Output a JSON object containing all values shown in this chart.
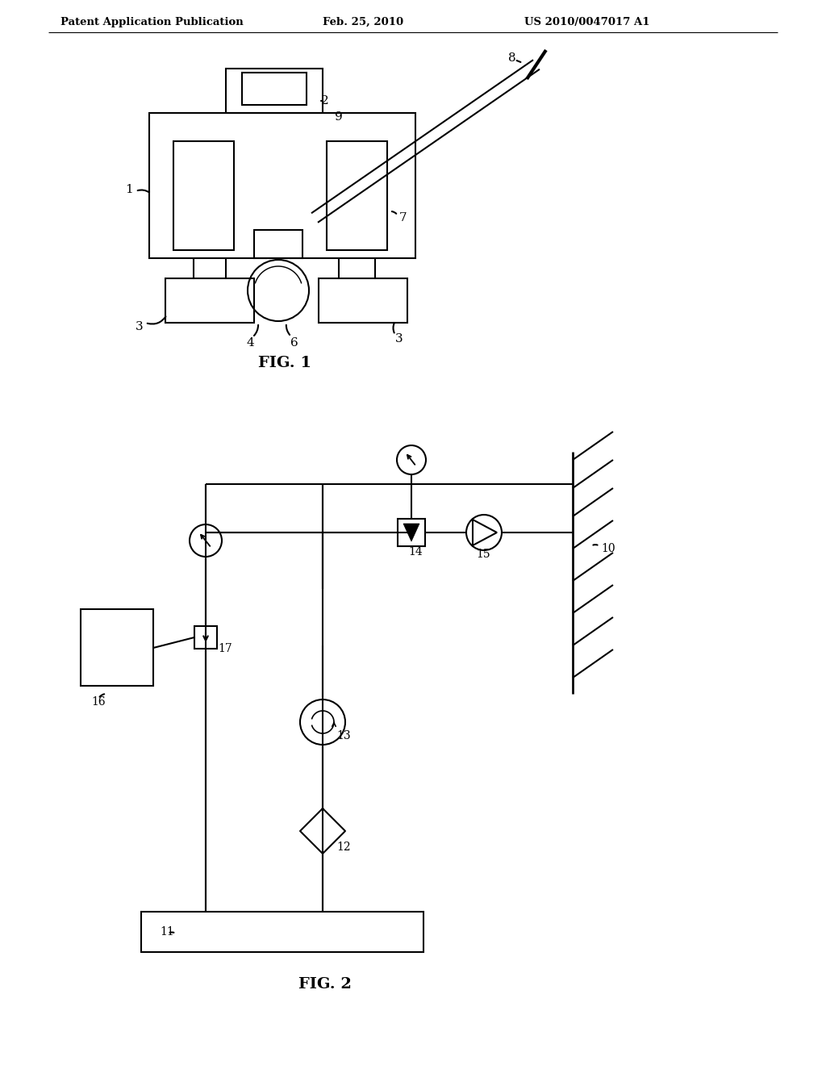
{
  "bg_color": "#ffffff",
  "header_left": "Patent Application Publication",
  "header_mid": "Feb. 25, 2010",
  "header_right": "US 2010/0047017 A1",
  "fig1_label": "FIG. 1",
  "fig2_label": "FIG. 2",
  "line_color": "#000000",
  "line_width": 1.5
}
